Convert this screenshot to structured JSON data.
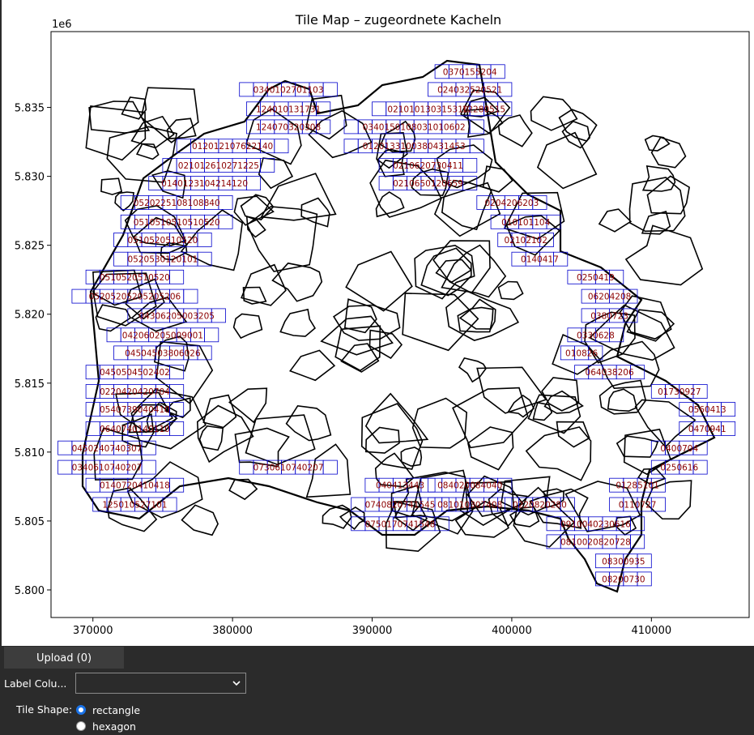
{
  "chart_data": {
    "type": "tile_map",
    "title": "Tile Map – zugeordnete Kacheln",
    "x_ticks": [
      "370000",
      "380000",
      "390000",
      "400000",
      "410000"
    ],
    "y_ticks": [
      "5.800",
      "5.805",
      "5.810",
      "5.815",
      "5.820",
      "5.825",
      "5.830",
      "5.835"
    ],
    "y_offset_label": "1e6",
    "xlim": [
      367000,
      417000
    ],
    "ylim": [
      5798000,
      5840500
    ],
    "tile_size": 1000,
    "tiles": [
      {
        "x": 397000,
        "y": 5837600,
        "label": "0370155204"
      },
      {
        "x": 384000,
        "y": 5836300,
        "label": "0340102701103"
      },
      {
        "x": 397000,
        "y": 5836300,
        "label": "024032520521"
      },
      {
        "x": 384000,
        "y": 5834900,
        "label": "124010131731"
      },
      {
        "x": 394000,
        "y": 5834900,
        "label": "021010130315310"
      },
      {
        "x": 398000,
        "y": 5834900,
        "label": "12280515"
      },
      {
        "x": 384000,
        "y": 5833600,
        "label": "124070320308"
      },
      {
        "x": 393000,
        "y": 5833600,
        "label": "0340150108031010602"
      },
      {
        "x": 380000,
        "y": 5832200,
        "label": "012012107622140"
      },
      {
        "x": 393000,
        "y": 5832200,
        "label": "0120133100380431453"
      },
      {
        "x": 379000,
        "y": 5830800,
        "label": "021012610271225"
      },
      {
        "x": 394000,
        "y": 5830800,
        "label": "0210620730411"
      },
      {
        "x": 378000,
        "y": 5829500,
        "label": "0140123104214120"
      },
      {
        "x": 394000,
        "y": 5829500,
        "label": "0210650120659"
      },
      {
        "x": 376000,
        "y": 5828100,
        "label": "0520225108108840"
      },
      {
        "x": 400000,
        "y": 5828100,
        "label": "0204206203"
      },
      {
        "x": 376000,
        "y": 5826700,
        "label": "0510510510510520"
      },
      {
        "x": 401000,
        "y": 5826700,
        "label": "010101104"
      },
      {
        "x": 375000,
        "y": 5825400,
        "label": "0510520510520"
      },
      {
        "x": 401000,
        "y": 5825400,
        "label": "02102102"
      },
      {
        "x": 375000,
        "y": 5824000,
        "label": "0520530120101"
      },
      {
        "x": 402000,
        "y": 5824000,
        "label": "0140417"
      },
      {
        "x": 373000,
        "y": 5822700,
        "label": "0510520510520"
      },
      {
        "x": 406000,
        "y": 5822700,
        "label": "0250419"
      },
      {
        "x": 373000,
        "y": 5821300,
        "label": "05205205205205206"
      },
      {
        "x": 407000,
        "y": 5821300,
        "label": "06204208"
      },
      {
        "x": 376000,
        "y": 5819900,
        "label": "04306205003205"
      },
      {
        "x": 407000,
        "y": 5819900,
        "label": "0380723"
      },
      {
        "x": 375000,
        "y": 5818500,
        "label": "042060205009001"
      },
      {
        "x": 406000,
        "y": 5818500,
        "label": "0330628"
      },
      {
        "x": 375000,
        "y": 5817200,
        "label": "04504503806026"
      },
      {
        "x": 405000,
        "y": 5817200,
        "label": "010826"
      },
      {
        "x": 373000,
        "y": 5815800,
        "label": "0450504502402"
      },
      {
        "x": 407000,
        "y": 5815800,
        "label": "064038206"
      },
      {
        "x": 373000,
        "y": 5814400,
        "label": "0220420420704"
      },
      {
        "x": 412000,
        "y": 5814400,
        "label": "01730927"
      },
      {
        "x": 373000,
        "y": 5813100,
        "label": "0540739040410"
      },
      {
        "x": 414000,
        "y": 5813100,
        "label": "0560413"
      },
      {
        "x": 373000,
        "y": 5811700,
        "label": "0640740140110"
      },
      {
        "x": 414000,
        "y": 5811700,
        "label": "0470941"
      },
      {
        "x": 371000,
        "y": 5810300,
        "label": "0450240740307"
      },
      {
        "x": 412000,
        "y": 5810300,
        "label": "0400704"
      },
      {
        "x": 371000,
        "y": 5808900,
        "label": "0340610740207"
      },
      {
        "x": 412000,
        "y": 5808900,
        "label": "0250616"
      },
      {
        "x": 373000,
        "y": 5807600,
        "label": "0140720410418"
      },
      {
        "x": 409000,
        "y": 5807600,
        "label": "01285101"
      },
      {
        "x": 373000,
        "y": 5806200,
        "label": "125010527101"
      },
      {
        "x": 409000,
        "y": 5806200,
        "label": "0110727"
      },
      {
        "x": 406000,
        "y": 5804800,
        "label": "0910040230616"
      },
      {
        "x": 406000,
        "y": 5803500,
        "label": "0810020820728"
      },
      {
        "x": 408000,
        "y": 5802100,
        "label": "08300935"
      },
      {
        "x": 408000,
        "y": 5800800,
        "label": "08200730"
      },
      {
        "x": 384000,
        "y": 5808900,
        "label": "0730610740207"
      },
      {
        "x": 392000,
        "y": 5807600,
        "label": "040413443"
      },
      {
        "x": 392000,
        "y": 5806200,
        "label": "0740820741545"
      },
      {
        "x": 392000,
        "y": 5804800,
        "label": "0750170741548"
      },
      {
        "x": 397000,
        "y": 5807600,
        "label": "084020084040"
      },
      {
        "x": 397000,
        "y": 5806200,
        "label": "081010307408"
      },
      {
        "x": 402000,
        "y": 5806200,
        "label": "0220820280"
      }
    ]
  },
  "controls": {
    "upload_label": "Upload (0)",
    "label_column_label": "Label Colu...",
    "label_column_value": "",
    "tile_shape_label": "Tile Shape:",
    "shape_options": [
      {
        "label": "rectangle",
        "checked": true
      },
      {
        "label": "hexagon",
        "checked": false
      }
    ]
  }
}
